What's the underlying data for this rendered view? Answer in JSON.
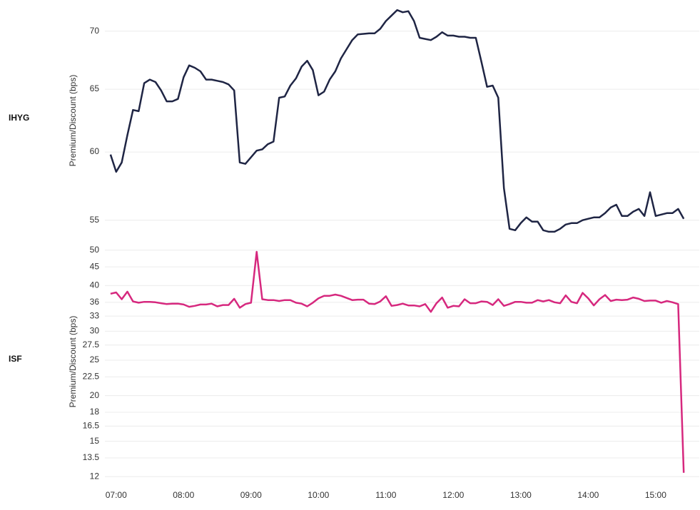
{
  "chart_data": [
    {
      "type": "line",
      "y_label": "Premium/Discount (bps)",
      "yscale": "log",
      "grid": true,
      "xlim": [
        410,
        935
      ],
      "ylim": [
        53.8,
        72.5
      ],
      "yticks": [
        55,
        60,
        65,
        70
      ],
      "x": [
        415,
        420,
        425,
        430,
        435,
        440,
        445,
        450,
        455,
        460,
        465,
        470,
        475,
        480,
        485,
        490,
        495,
        500,
        505,
        510,
        515,
        520,
        525,
        530,
        535,
        540,
        545,
        550,
        555,
        560,
        565,
        570,
        575,
        580,
        585,
        590,
        595,
        600,
        605,
        610,
        615,
        620,
        625,
        630,
        635,
        640,
        645,
        650,
        655,
        660,
        665,
        670,
        675,
        680,
        685,
        690,
        695,
        700,
        705,
        710,
        715,
        720,
        725,
        730,
        735,
        740,
        745,
        750,
        755,
        760,
        765,
        770,
        775,
        780,
        785,
        790,
        795,
        800,
        805,
        810,
        815,
        820,
        825,
        830,
        835,
        840,
        845,
        850,
        855,
        860,
        865,
        870,
        875,
        880,
        885,
        890,
        895,
        900,
        905,
        910,
        915,
        920,
        925
      ],
      "series": [
        {
          "name": "IHYG",
          "color": "#1f2544",
          "values": [
            59.8,
            58.5,
            59.2,
            61.3,
            63.3,
            63.2,
            65.5,
            65.8,
            65.6,
            64.9,
            64.0,
            64.0,
            64.2,
            66.0,
            67.0,
            66.8,
            66.5,
            65.8,
            65.8,
            65.7,
            65.6,
            65.4,
            64.9,
            59.2,
            59.1,
            59.6,
            60.1,
            60.2,
            60.6,
            60.8,
            64.3,
            64.4,
            65.3,
            65.9,
            66.9,
            67.4,
            66.6,
            64.5,
            64.8,
            65.8,
            66.5,
            67.6,
            68.4,
            69.2,
            69.7,
            69.75,
            69.8,
            69.8,
            70.2,
            70.9,
            71.4,
            71.9,
            71.7,
            71.8,
            70.9,
            69.4,
            69.3,
            69.2,
            69.5,
            69.9,
            69.6,
            69.6,
            69.5,
            69.5,
            69.4,
            69.4,
            67.3,
            65.2,
            65.3,
            64.3,
            57.3,
            54.4,
            54.3,
            54.8,
            55.2,
            54.9,
            54.9,
            54.3,
            54.2,
            54.2,
            54.4,
            54.7,
            54.8,
            54.8,
            55.0,
            55.1,
            55.2,
            55.2,
            55.5,
            55.9,
            56.1,
            55.3,
            55.3,
            55.6,
            55.8,
            55.3,
            57.0,
            55.3,
            55.4,
            55.5,
            55.5,
            55.8,
            55.1
          ]
        }
      ]
    },
    {
      "type": "line",
      "y_label": "Premium/Discount (bps)",
      "yscale": "log",
      "grid": true,
      "xlim": [
        410,
        935
      ],
      "ylim": [
        11.8,
        52
      ],
      "yticks": [
        50,
        45,
        40,
        36,
        33,
        30,
        27.5,
        25,
        22.5,
        20,
        18,
        16.5,
        15,
        13.5,
        12
      ],
      "xticks": [
        {
          "value": 420,
          "label": "07:00"
        },
        {
          "value": 480,
          "label": "08:00"
        },
        {
          "value": 540,
          "label": "09:00"
        },
        {
          "value": 600,
          "label": "10:00"
        },
        {
          "value": 660,
          "label": "11:00"
        },
        {
          "value": 720,
          "label": "12:00"
        },
        {
          "value": 780,
          "label": "13:00"
        },
        {
          "value": 840,
          "label": "14:00"
        },
        {
          "value": 900,
          "label": "15:00"
        }
      ],
      "x": [
        415,
        420,
        425,
        430,
        435,
        440,
        445,
        450,
        455,
        460,
        465,
        470,
        475,
        480,
        485,
        490,
        495,
        500,
        505,
        510,
        515,
        520,
        525,
        530,
        535,
        540,
        545,
        550,
        555,
        560,
        565,
        570,
        575,
        580,
        585,
        590,
        595,
        600,
        605,
        610,
        615,
        620,
        625,
        630,
        635,
        640,
        645,
        650,
        655,
        660,
        665,
        670,
        675,
        680,
        685,
        690,
        695,
        700,
        705,
        710,
        715,
        720,
        725,
        730,
        735,
        740,
        745,
        750,
        755,
        760,
        765,
        770,
        775,
        780,
        785,
        790,
        795,
        800,
        805,
        810,
        815,
        820,
        825,
        830,
        835,
        840,
        845,
        850,
        855,
        860,
        865,
        870,
        875,
        880,
        885,
        890,
        895,
        900,
        905,
        910,
        915,
        920,
        925
      ],
      "series": [
        {
          "name": "ISF",
          "color": "#d6287e",
          "values": [
            38.0,
            38.3,
            36.7,
            38.5,
            36.2,
            35.9,
            36.1,
            36.1,
            36.0,
            35.8,
            35.6,
            35.7,
            35.7,
            35.5,
            35.0,
            35.2,
            35.5,
            35.5,
            35.7,
            35.1,
            35.4,
            35.4,
            36.8,
            34.8,
            35.6,
            35.9,
            49.5,
            36.7,
            36.5,
            36.5,
            36.3,
            36.5,
            36.5,
            35.9,
            35.7,
            35.1,
            35.9,
            36.9,
            37.5,
            37.5,
            37.8,
            37.5,
            37.0,
            36.5,
            36.6,
            36.6,
            35.7,
            35.6,
            36.2,
            37.4,
            35.2,
            35.4,
            35.7,
            35.3,
            35.3,
            35.1,
            35.6,
            33.9,
            35.8,
            37.1,
            34.8,
            35.2,
            35.1,
            36.7,
            35.8,
            35.8,
            36.2,
            36.1,
            35.4,
            36.7,
            35.2,
            35.6,
            36.1,
            36.1,
            35.9,
            35.9,
            36.5,
            36.2,
            36.5,
            36.0,
            35.8,
            37.6,
            36.1,
            35.8,
            38.2,
            36.9,
            35.3,
            36.7,
            37.7,
            36.3,
            36.6,
            36.5,
            36.6,
            37.1,
            36.8,
            36.3,
            36.4,
            36.4,
            35.9,
            36.3,
            36.0,
            35.6,
            12.3
          ]
        }
      ]
    }
  ]
}
